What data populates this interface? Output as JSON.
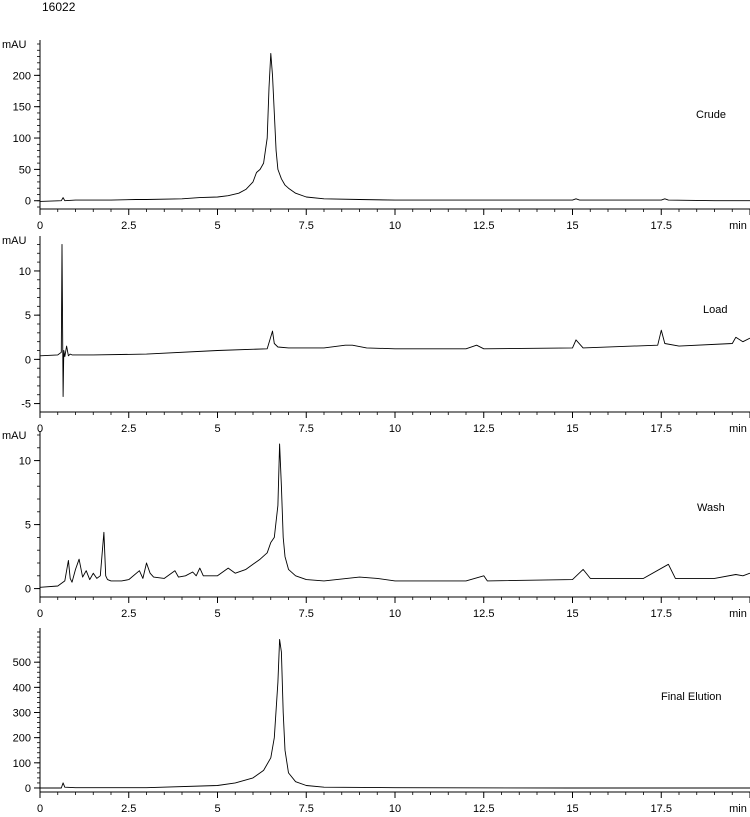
{
  "header": {
    "sample_id": "16022"
  },
  "chart_data": [
    {
      "type": "line",
      "label": "Crude",
      "y_unit": "mAU",
      "x_unit": "min",
      "xlim": [
        0,
        20
      ],
      "ylim": [
        -10,
        250
      ],
      "y_ticks": [
        0,
        50,
        100,
        150,
        200
      ],
      "x_ticks": [
        "0",
        "2.5",
        "5",
        "7.5",
        "10",
        "12.5",
        "15",
        "17.5"
      ],
      "series": [
        {
          "x": [
            0,
            0.6,
            0.65,
            0.7,
            1.0,
            2.0,
            2.7,
            3.0,
            4.0,
            4.5,
            5.0,
            5.3,
            5.6,
            5.8,
            6.0,
            6.1,
            6.2,
            6.3,
            6.4,
            6.45,
            6.5,
            6.55,
            6.6,
            6.65,
            6.7,
            6.8,
            6.9,
            7.0,
            7.2,
            7.5,
            8.0,
            9.0,
            10.0,
            12.0,
            15.0,
            15.1,
            15.2,
            17.5,
            17.6,
            17.7,
            19.0,
            20.0
          ],
          "y": [
            -1,
            0,
            5,
            0,
            1,
            1,
            2,
            2,
            3,
            5,
            6,
            8,
            12,
            18,
            30,
            45,
            50,
            60,
            100,
            180,
            235,
            200,
            140,
            80,
            50,
            35,
            25,
            20,
            12,
            6,
            3,
            2,
            1,
            1,
            1,
            3,
            1,
            1,
            3,
            1,
            0,
            0
          ]
        }
      ]
    },
    {
      "type": "line",
      "label": "Load",
      "y_unit": "mAU",
      "x_unit": "min",
      "xlim": [
        0,
        20
      ],
      "ylim": [
        -5.5,
        13.5
      ],
      "y_ticks": [
        -5,
        0,
        5,
        10
      ],
      "x_ticks": [
        "0",
        "2.5",
        "5",
        "7.5",
        "10",
        "12.5",
        "15",
        "17.5"
      ],
      "series": [
        {
          "x": [
            0,
            0.5,
            0.6,
            0.62,
            0.65,
            0.67,
            0.7,
            0.75,
            0.8,
            0.85,
            0.9,
            1.5,
            3.0,
            5.0,
            6.4,
            6.55,
            6.6,
            6.7,
            7.0,
            8.0,
            8.6,
            8.8,
            9.2,
            10.0,
            12.0,
            12.3,
            12.5,
            15.0,
            15.1,
            15.3,
            17.4,
            17.5,
            17.6,
            18.0,
            19.5,
            19.6,
            19.8,
            20.0
          ],
          "y": [
            0.4,
            0.5,
            0.8,
            13,
            -4.2,
            1.0,
            0.3,
            1.5,
            0.4,
            0.6,
            0.5,
            0.5,
            0.6,
            1.0,
            1.2,
            3.2,
            1.8,
            1.4,
            1.3,
            1.3,
            1.6,
            1.6,
            1.3,
            1.2,
            1.2,
            1.6,
            1.2,
            1.3,
            2.2,
            1.3,
            1.6,
            3.3,
            1.8,
            1.5,
            1.8,
            2.5,
            2.0,
            2.4
          ]
        }
      ]
    },
    {
      "type": "line",
      "label": "Wash",
      "y_unit": "mAU",
      "x_unit": "min",
      "xlim": [
        0,
        20
      ],
      "ylim": [
        -0.5,
        12
      ],
      "y_ticks": [
        0,
        5,
        10
      ],
      "x_ticks": [
        "0",
        "2.5",
        "5",
        "7.5",
        "10",
        "12.5",
        "15",
        "17.5"
      ],
      "series": [
        {
          "x": [
            0,
            0.5,
            0.7,
            0.8,
            0.85,
            0.9,
            1.0,
            1.1,
            1.2,
            1.3,
            1.4,
            1.5,
            1.6,
            1.7,
            1.8,
            1.85,
            1.9,
            2.0,
            2.3,
            2.5,
            2.8,
            2.9,
            3.0,
            3.1,
            3.2,
            3.5,
            3.8,
            3.9,
            4.1,
            4.3,
            4.4,
            4.5,
            4.6,
            5.0,
            5.3,
            5.5,
            5.8,
            6.0,
            6.2,
            6.4,
            6.5,
            6.6,
            6.7,
            6.75,
            6.8,
            6.85,
            6.9,
            7.0,
            7.2,
            7.5,
            8.0,
            9.0,
            9.5,
            10.0,
            12.0,
            12.5,
            12.6,
            15.0,
            15.3,
            15.5,
            17.0,
            17.7,
            17.9,
            19.0,
            19.6,
            19.8,
            20.0
          ],
          "y": [
            0.1,
            0.2,
            0.6,
            2.2,
            0.8,
            0.5,
            1.5,
            2.3,
            0.9,
            1.4,
            0.7,
            1.2,
            0.8,
            1.0,
            4.4,
            1.0,
            0.7,
            0.6,
            0.6,
            0.7,
            1.4,
            0.8,
            2.0,
            1.2,
            0.9,
            0.8,
            1.4,
            0.9,
            1.0,
            1.3,
            1.0,
            1.6,
            1.0,
            1.0,
            1.6,
            1.2,
            1.5,
            1.9,
            2.3,
            2.8,
            3.6,
            4.0,
            6.5,
            11.3,
            8.0,
            4.0,
            2.5,
            1.5,
            1.0,
            0.7,
            0.6,
            0.9,
            0.8,
            0.6,
            0.6,
            1.0,
            0.6,
            0.7,
            1.5,
            0.8,
            0.8,
            1.9,
            0.8,
            0.8,
            1.1,
            1.0,
            1.2
          ]
        }
      ]
    },
    {
      "type": "line",
      "label": "Final Elution",
      "y_unit": "",
      "x_unit": "min",
      "xlim": [
        0,
        20
      ],
      "ylim": [
        -20,
        620
      ],
      "y_ticks": [
        0,
        100,
        200,
        300,
        400,
        500
      ],
      "x_ticks": [
        "0",
        "2.5",
        "5",
        "7.5",
        "10",
        "12.5",
        "15",
        "17.5"
      ],
      "series": [
        {
          "x": [
            0,
            0.6,
            0.65,
            0.7,
            1.0,
            3.0,
            5.0,
            5.5,
            6.0,
            6.3,
            6.5,
            6.6,
            6.7,
            6.75,
            6.8,
            6.85,
            6.9,
            7.0,
            7.2,
            7.5,
            8.0,
            10.0,
            15.0,
            20.0
          ],
          "y": [
            0,
            0,
            20,
            3,
            1,
            1,
            10,
            20,
            40,
            70,
            120,
            200,
            420,
            590,
            540,
            300,
            150,
            60,
            25,
            10,
            3,
            1,
            0,
            0
          ]
        }
      ]
    }
  ]
}
